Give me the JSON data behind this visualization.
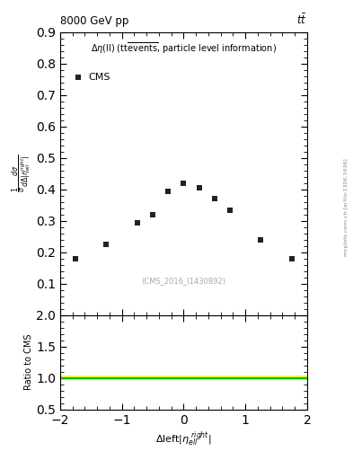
{
  "title": "8000 GeV pp",
  "title_right": "tt",
  "inner_title": "Δη(ll) (tt̅events, particle level information)",
  "cms_label": "CMS",
  "watermark": "(CMS_2016_I1430892)",
  "arxiv_label": "mcplots.cern.ch [arXiv:1306.3436]",
  "ylabel_main": "1/σ dσ/dΔleft|η_ell right|",
  "ylabel_ratio": "Ratio to CMS",
  "xlabel": "Δleft|η_ell right|",
  "x_data": [
    -1.75,
    -1.25,
    -0.75,
    -0.5,
    -0.25,
    0.0,
    0.25,
    0.5,
    0.75,
    1.25,
    1.75
  ],
  "y_data": [
    0.178,
    0.225,
    0.295,
    0.32,
    0.395,
    0.42,
    0.405,
    0.37,
    0.335,
    0.24,
    0.178
  ],
  "xlim": [
    -2.0,
    2.0
  ],
  "ylim_main": [
    0.0,
    0.9
  ],
  "ylim_ratio": [
    0.5,
    2.0
  ],
  "yticks_main": [
    0.1,
    0.2,
    0.3,
    0.4,
    0.5,
    0.6,
    0.7,
    0.8,
    0.9
  ],
  "yticks_ratio": [
    0.5,
    1.0,
    1.5,
    2.0
  ],
  "xticks": [
    -2,
    -1,
    0,
    1,
    2
  ],
  "marker_color": "#222222",
  "ratio_line_color": "#00bb00",
  "ratio_band_color": "#ddff44",
  "background_color": "#ffffff"
}
